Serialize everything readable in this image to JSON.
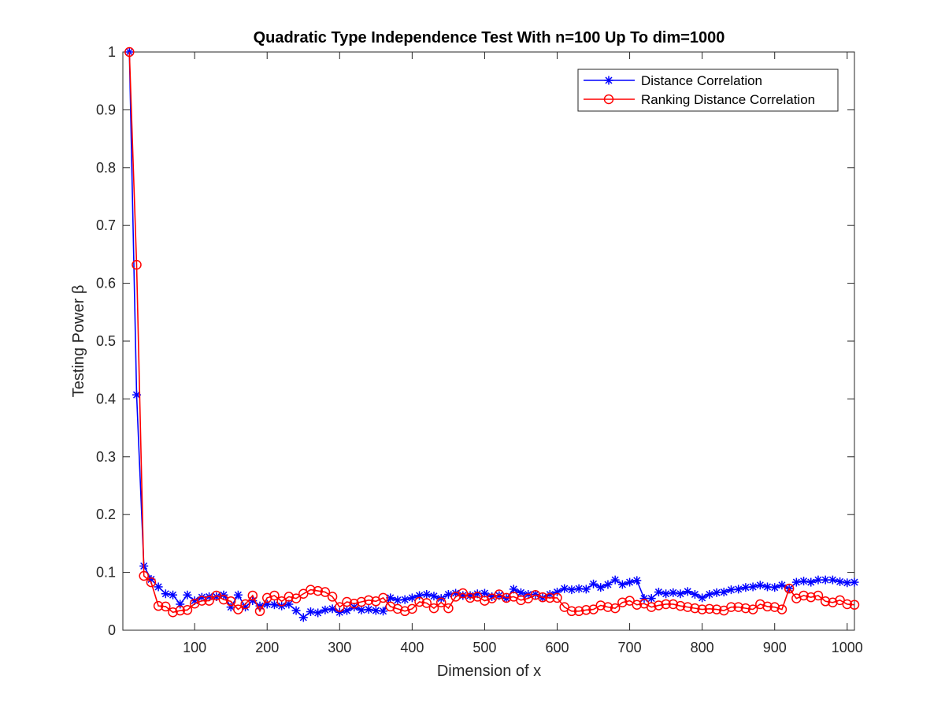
{
  "chart_data": {
    "type": "line",
    "title": "Quadratic Type Independence Test With n=100 Up To dim=1000",
    "xlabel": "Dimension of x",
    "ylabel": "Testing Power β",
    "xlim": [
      1,
      1010
    ],
    "ylim": [
      0,
      1
    ],
    "xticks": [
      100,
      200,
      300,
      400,
      500,
      600,
      700,
      800,
      900,
      1000
    ],
    "yticks": [
      0,
      0.1,
      0.2,
      0.3,
      0.4,
      0.5,
      0.6,
      0.7,
      0.8,
      0.9,
      1
    ],
    "legend_position": "top-right",
    "grid": false,
    "x": [
      10,
      20,
      30,
      40,
      50,
      60,
      70,
      80,
      90,
      100,
      110,
      120,
      130,
      140,
      150,
      160,
      170,
      180,
      190,
      200,
      210,
      220,
      230,
      240,
      250,
      260,
      270,
      280,
      290,
      300,
      310,
      320,
      330,
      340,
      350,
      360,
      370,
      380,
      390,
      400,
      410,
      420,
      430,
      440,
      450,
      460,
      470,
      480,
      490,
      500,
      510,
      520,
      530,
      540,
      550,
      560,
      570,
      580,
      590,
      600,
      610,
      620,
      630,
      640,
      650,
      660,
      670,
      680,
      690,
      700,
      710,
      720,
      730,
      740,
      750,
      760,
      770,
      780,
      790,
      800,
      810,
      820,
      830,
      840,
      850,
      860,
      870,
      880,
      890,
      900,
      910,
      920,
      930,
      940,
      950,
      960,
      970,
      980,
      990,
      1000,
      1010
    ],
    "series": [
      {
        "name": "Distance Correlation",
        "color": "#0000ff",
        "marker": "asterisk",
        "values": [
          1.0,
          0.407,
          0.111,
          0.088,
          0.075,
          0.063,
          0.061,
          0.045,
          0.061,
          0.051,
          0.057,
          0.058,
          0.058,
          0.061,
          0.04,
          0.061,
          0.04,
          0.051,
          0.042,
          0.045,
          0.044,
          0.042,
          0.045,
          0.034,
          0.022,
          0.032,
          0.03,
          0.035,
          0.037,
          0.031,
          0.034,
          0.04,
          0.035,
          0.036,
          0.034,
          0.033,
          0.056,
          0.052,
          0.053,
          0.056,
          0.06,
          0.062,
          0.059,
          0.055,
          0.062,
          0.064,
          0.06,
          0.06,
          0.063,
          0.064,
          0.058,
          0.06,
          0.055,
          0.071,
          0.065,
          0.062,
          0.062,
          0.056,
          0.062,
          0.066,
          0.072,
          0.07,
          0.072,
          0.071,
          0.08,
          0.074,
          0.079,
          0.087,
          0.079,
          0.083,
          0.086,
          0.055,
          0.055,
          0.066,
          0.063,
          0.065,
          0.063,
          0.067,
          0.062,
          0.056,
          0.062,
          0.065,
          0.066,
          0.07,
          0.071,
          0.074,
          0.075,
          0.078,
          0.075,
          0.074,
          0.078,
          0.072,
          0.083,
          0.085,
          0.083,
          0.087,
          0.087,
          0.087,
          0.084,
          0.082,
          0.083
        ]
      },
      {
        "name": "Ranking Distance Correlation",
        "color": "#ff0000",
        "marker": "circle",
        "values": [
          1.0,
          0.632,
          0.094,
          0.083,
          0.042,
          0.041,
          0.031,
          0.034,
          0.035,
          0.046,
          0.051,
          0.051,
          0.06,
          0.053,
          0.05,
          0.036,
          0.045,
          0.06,
          0.033,
          0.056,
          0.06,
          0.05,
          0.058,
          0.055,
          0.063,
          0.07,
          0.068,
          0.066,
          0.058,
          0.04,
          0.049,
          0.046,
          0.049,
          0.052,
          0.05,
          0.056,
          0.041,
          0.037,
          0.033,
          0.037,
          0.049,
          0.047,
          0.038,
          0.048,
          0.038,
          0.058,
          0.064,
          0.056,
          0.058,
          0.051,
          0.055,
          0.062,
          0.056,
          0.058,
          0.052,
          0.055,
          0.061,
          0.057,
          0.056,
          0.056,
          0.04,
          0.033,
          0.033,
          0.035,
          0.036,
          0.043,
          0.04,
          0.038,
          0.048,
          0.051,
          0.044,
          0.046,
          0.04,
          0.043,
          0.045,
          0.045,
          0.042,
          0.04,
          0.038,
          0.036,
          0.037,
          0.036,
          0.034,
          0.04,
          0.04,
          0.038,
          0.036,
          0.045,
          0.041,
          0.04,
          0.036,
          0.072,
          0.055,
          0.06,
          0.057,
          0.06,
          0.05,
          0.048,
          0.052,
          0.045,
          0.044
        ]
      }
    ]
  }
}
